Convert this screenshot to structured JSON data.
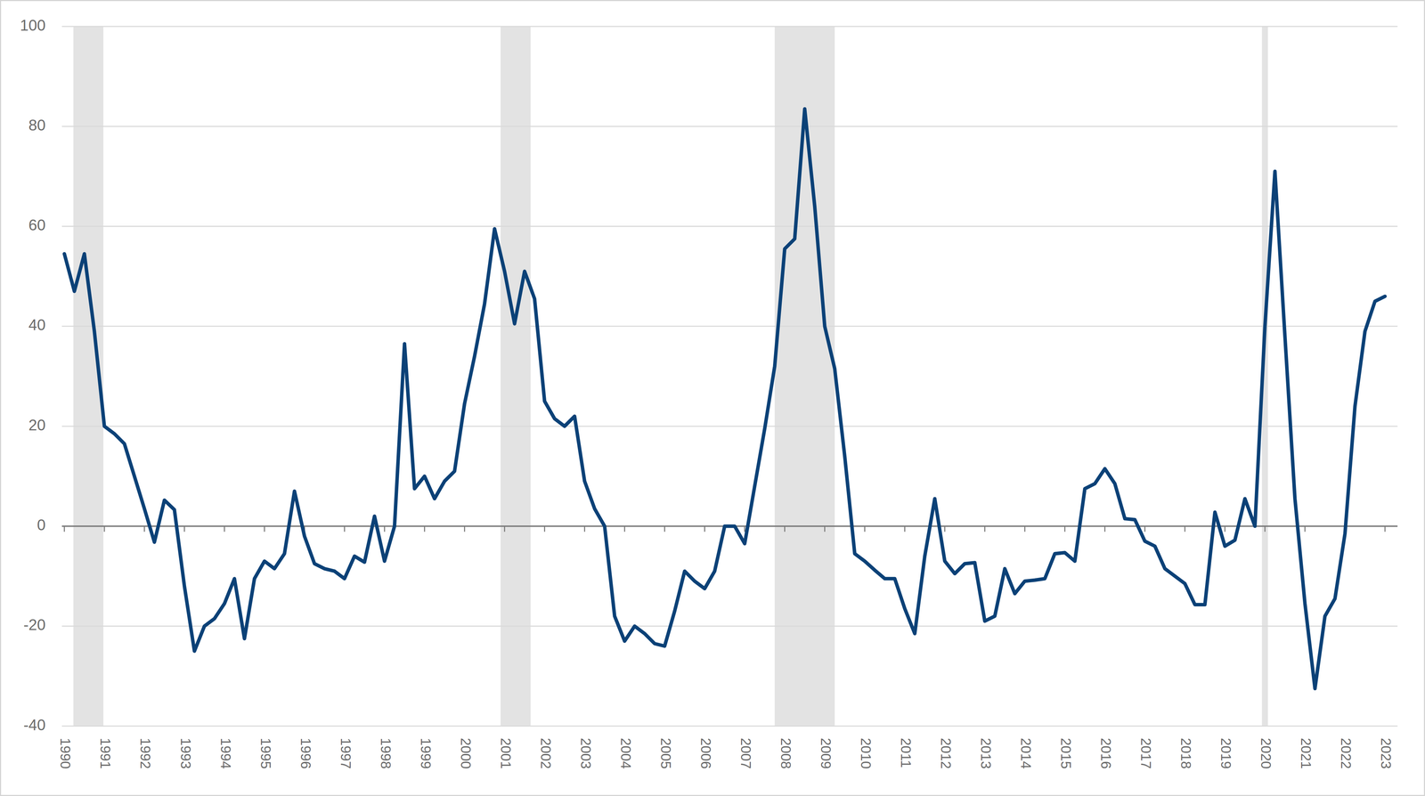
{
  "chart_data": {
    "type": "line",
    "categories": [
      "1990",
      null,
      null,
      null,
      "1991",
      null,
      null,
      null,
      "1992",
      null,
      null,
      null,
      "1993",
      null,
      null,
      null,
      "1994",
      null,
      null,
      null,
      "1995",
      null,
      null,
      null,
      "1996",
      null,
      null,
      null,
      "1997",
      null,
      null,
      null,
      "1998",
      null,
      null,
      null,
      "1999",
      null,
      null,
      null,
      "2000",
      null,
      null,
      null,
      "2001",
      null,
      null,
      null,
      "2002",
      null,
      null,
      null,
      "2003",
      null,
      null,
      null,
      "2004",
      null,
      null,
      null,
      "2005",
      null,
      null,
      null,
      "2006",
      null,
      null,
      null,
      "2007",
      null,
      null,
      null,
      "2008",
      null,
      null,
      null,
      "2009",
      null,
      null,
      null,
      "2010",
      null,
      null,
      null,
      "2011",
      null,
      null,
      null,
      "2012",
      null,
      null,
      null,
      "2013",
      null,
      null,
      null,
      "2014",
      null,
      null,
      null,
      "2015",
      null,
      null,
      null,
      "2016",
      null,
      null,
      null,
      "2017",
      null,
      null,
      null,
      "2018",
      null,
      null,
      null,
      "2019",
      null,
      null,
      null,
      "2020",
      null,
      null,
      null,
      "2021",
      null,
      null,
      null,
      "2022",
      null,
      null,
      null,
      "2023"
    ],
    "values": [
      54.5,
      47,
      54.5,
      39,
      20,
      18.5,
      16.5,
      10,
      3.5,
      -3.2,
      5.2,
      3.3,
      -12,
      -25,
      -20,
      -18.5,
      -15.5,
      -10.5,
      -22.5,
      -10.5,
      -7,
      -8.5,
      -5.5,
      7,
      -2,
      -7.5,
      -8.5,
      -9,
      -10.5,
      -6,
      -7.2,
      2,
      -7,
      0,
      36.5,
      7.5,
      10,
      5.5,
      9,
      11,
      24.5,
      34,
      44.5,
      59.5,
      51,
      40.5,
      51,
      45.5,
      25,
      21.5,
      20,
      22,
      9,
      3.5,
      0,
      -18,
      -23,
      -20,
      -21.5,
      -23.5,
      -24,
      -17,
      -9,
      -11,
      -12.5,
      -9,
      0,
      0,
      -3.5,
      8,
      19.5,
      32,
      55.5,
      57.5,
      83.5,
      64,
      40,
      31.5,
      14,
      -5.5,
      -7,
      -8.8,
      -10.5,
      -10.5,
      -16.5,
      -21.5,
      -6,
      5.5,
      -7,
      -9.5,
      -7.5,
      -7.3,
      -19,
      -18,
      -8.5,
      -13.5,
      -11,
      -10.8,
      -10.5,
      -5.5,
      -5.3,
      -7,
      7.5,
      8.5,
      11.5,
      8.5,
      1.5,
      1.3,
      -3,
      -4,
      -8.5,
      -10,
      -11.5,
      -15.7,
      -15.7,
      2.8,
      -4,
      -2.8,
      5.5,
      0,
      40,
      71,
      38,
      5.5,
      -15.5,
      -32.5,
      -18,
      -14.5,
      -1.5,
      24,
      39,
      45,
      46
    ],
    "color": "#0b4177",
    "shaded_ranges": [
      [
        0.9,
        3.9
      ],
      [
        43.6,
        46.6
      ],
      [
        71,
        77
      ],
      [
        119.7,
        120.3
      ]
    ],
    "ylim": [
      -40,
      100
    ],
    "yticks": [
      -40,
      -20,
      0,
      20,
      40,
      60,
      80,
      100
    ],
    "grid": true
  }
}
